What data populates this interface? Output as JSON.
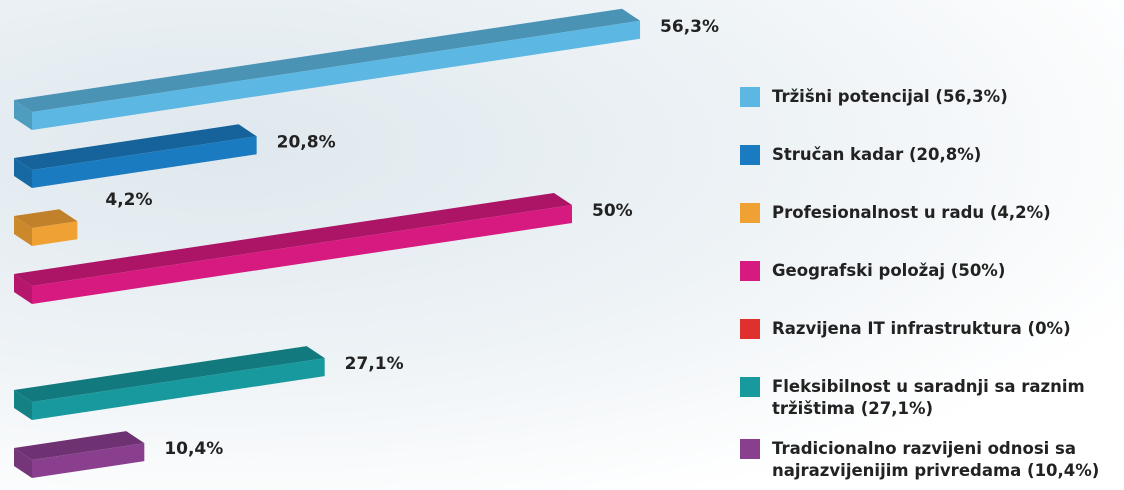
{
  "chart_data": {
    "type": "bar3d",
    "categories": [
      "Tržišni potencijal (56,3%)",
      "Stručan kadar (20,8%)",
      "Profesionalnost u radu (4,2%)",
      "Geografski položaj (50%)",
      "Razvijena IT infrastruktura (0%)",
      "Fleksibilnost u saradnji sa raznim tržištima (27,1%)",
      "Tradicionalno razvijeni odnosi sa najrazvijenijim privredama (10,4%)"
    ],
    "values": [
      56.3,
      20.8,
      4.2,
      50,
      0,
      27.1,
      10.4
    ],
    "value_labels": [
      "56,3%",
      "20,8%",
      "4,2%",
      "50%",
      null,
      "27,1%",
      "10,4%"
    ],
    "colors": [
      "#5cb8e2",
      "#1b7bc1",
      "#f0a134",
      "#d71a80",
      "#e0302e",
      "#17999d",
      "#8a3f8e"
    ]
  }
}
